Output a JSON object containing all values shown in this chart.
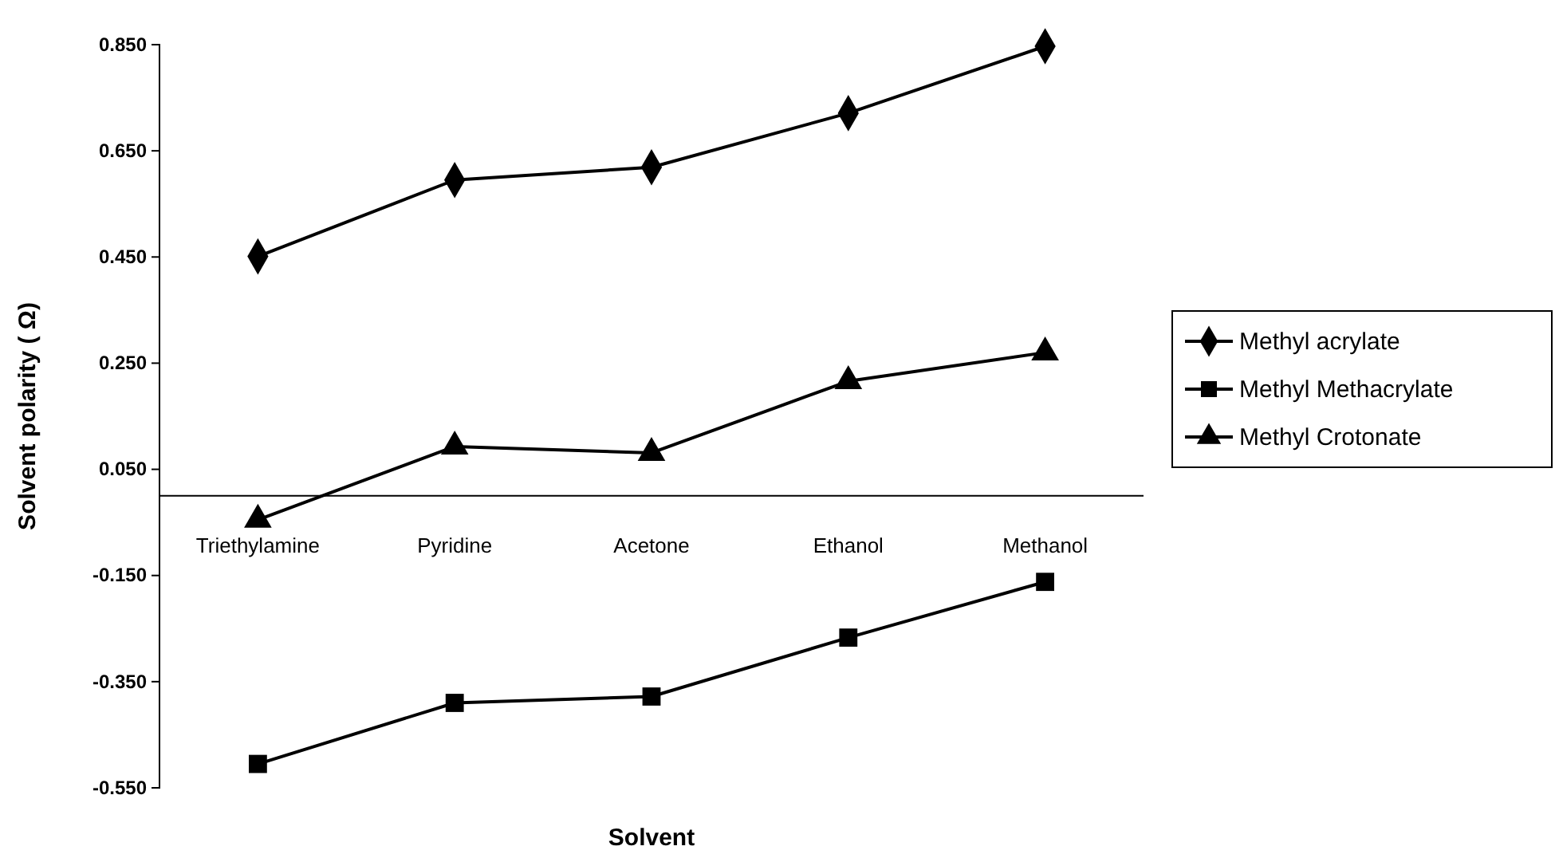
{
  "chart_data": {
    "type": "line",
    "xlabel": "Solvent",
    "ylabel": "Solvent polarity ( Ω)",
    "categories": [
      "Triethylamine",
      "Pyridine",
      "Acetone",
      "Ethanol",
      "Methanol"
    ],
    "series": [
      {
        "name": "Methyl acrylate",
        "color": "#000000",
        "marker": "diamond",
        "values": [
          0.451,
          0.595,
          0.619,
          0.721,
          0.847
        ]
      },
      {
        "name": "Methyl Methacrylate",
        "color": "#000000",
        "marker": "square",
        "values": [
          -0.505,
          -0.39,
          -0.378,
          -0.267,
          -0.162
        ]
      },
      {
        "name": "Methyl Crotonate",
        "color": "#000000",
        "marker": "triangle",
        "values": [
          -0.045,
          0.093,
          0.081,
          0.216,
          0.27
        ]
      }
    ],
    "ylim": [
      -0.55,
      0.85
    ],
    "yticks": [
      {
        "value": -0.55,
        "label": "-0.550"
      },
      {
        "value": -0.35,
        "label": "-0.350"
      },
      {
        "value": -0.15,
        "label": "-0.150"
      },
      {
        "value": 0.05,
        "label": "0.050"
      },
      {
        "value": 0.25,
        "label": "0.250"
      },
      {
        "value": 0.45,
        "label": "0.450"
      },
      {
        "value": 0.65,
        "label": "0.650"
      },
      {
        "value": 0.85,
        "label": "0.850"
      }
    ],
    "grid": false,
    "legend": "right",
    "line_style": "solid"
  }
}
